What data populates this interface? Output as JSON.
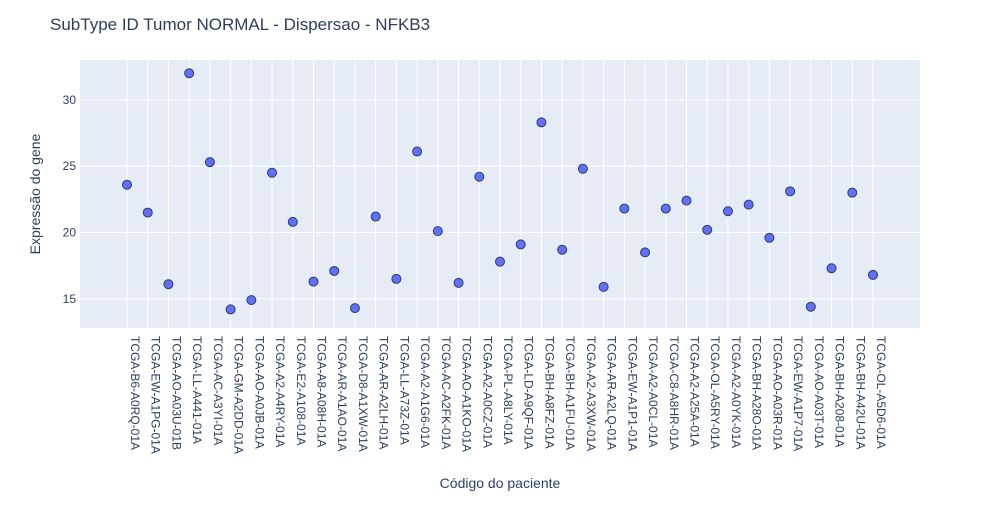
{
  "chart_data": {
    "type": "scatter",
    "title": "SubType ID Tumor NORMAL - Dispersao - NFKB3",
    "xlabel": "Código do paciente",
    "ylabel": "Expressão do gene",
    "ylim": [
      12.8,
      33.0
    ],
    "yticks": [
      15,
      20,
      25,
      30
    ],
    "grid": true,
    "legend": "none",
    "colors": {
      "plot_bg": "#e5ecf6",
      "marker_fill": "#636efa",
      "marker_edge": "#2a3f5f",
      "grid": "#ffffff",
      "text": "#2a3f5f"
    },
    "x": [
      "TCGA-B6-A0RQ-01A",
      "TCGA-EW-A1PG-01A",
      "TCGA-AO-A03U-01B",
      "TCGA-LL-A441-01A",
      "TCGA-AC-A3YI-01A",
      "TCGA-GM-A2DD-01A",
      "TCGA-AO-A0JB-01A",
      "TCGA-A2-A4RY-01A",
      "TCGA-E2-A108-01A",
      "TCGA-A8-A08H-01A",
      "TCGA-AR-A1AO-01A",
      "TCGA-D8-A1XW-01A",
      "TCGA-AR-A2LH-01A",
      "TCGA-LL-A73Z-01A",
      "TCGA-A2-A1G6-01A",
      "TCGA-AC-A2FK-01A",
      "TCGA-AO-A1KO-01A",
      "TCGA-A2-A0CZ-01A",
      "TCGA-PL-A8LY-01A",
      "TCGA-LD-A9QF-01A",
      "TCGA-BH-A8FZ-01A",
      "TCGA-BH-A1FU-01A",
      "TCGA-A2-A3XW-01A",
      "TCGA-AR-A2LQ-01A",
      "TCGA-EW-A1P1-01A",
      "TCGA-A2-A0CL-01A",
      "TCGA-C8-A8HR-01A",
      "TCGA-A2-A25A-01A",
      "TCGA-OL-A5RY-01A",
      "TCGA-A2-A0YK-01A",
      "TCGA-BH-A28O-01A",
      "TCGA-AO-A03R-01A",
      "TCGA-EW-A1P7-01A",
      "TCGA-AO-A03T-01A",
      "TCGA-BH-A208-01A",
      "TCGA-BH-A42U-01A",
      "TCGA-OL-A5D6-01A"
    ],
    "y": [
      23.6,
      21.5,
      16.1,
      32.0,
      25.3,
      14.2,
      14.9,
      24.5,
      20.8,
      16.3,
      17.1,
      14.3,
      21.2,
      16.5,
      26.1,
      20.1,
      16.2,
      24.2,
      17.8,
      19.1,
      28.3,
      18.7,
      24.8,
      15.9,
      21.8,
      18.5,
      21.8,
      22.4,
      20.2,
      21.6,
      22.1,
      19.6,
      23.1,
      14.4,
      17.3,
      23.0,
      16.8
    ]
  }
}
